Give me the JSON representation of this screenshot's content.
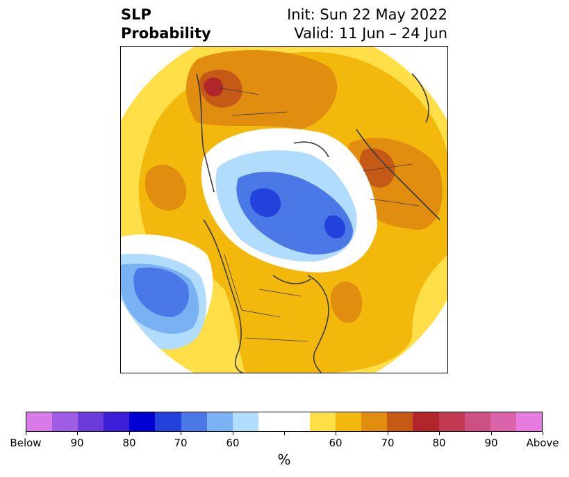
{
  "title": {
    "left_line1": "SLP",
    "left_line2": "Probability",
    "right_line1": "Init: Sun 22 May 2022",
    "right_line2": "Valid: 11 Jun – 24 Jun"
  },
  "colorbar": {
    "unit": "%",
    "colors": [
      "#d87ae8",
      "#9f5de3",
      "#6a3ddb",
      "#3c1fd6",
      "#0000d2",
      "#2342db",
      "#4a78e6",
      "#78b2f2",
      "#b2dcfb",
      "#ffffff",
      "#ffffff",
      "#ffdf47",
      "#f2b80c",
      "#e08d10",
      "#c55a17",
      "#b1262a",
      "#c23a52",
      "#cc5081",
      "#d962a8",
      "#e67be0"
    ],
    "tick_labels": [
      "Below",
      "90",
      "80",
      "70",
      "60",
      "",
      "60",
      "70",
      "80",
      "90",
      "Above"
    ]
  },
  "map": {
    "projection": "north-polar-stereographic",
    "content": "probability shading of sea level pressure"
  }
}
